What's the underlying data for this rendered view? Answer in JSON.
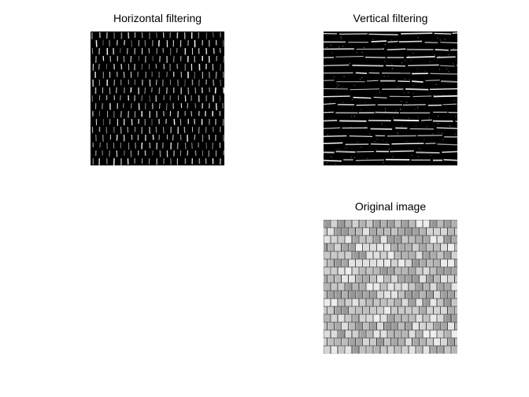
{
  "figure": {
    "background": "#ffffff",
    "panels": [
      {
        "id": "horizontal",
        "title": "Horizontal filtering",
        "content": "texture filtered image with short bright vertical strokes on black",
        "colors": {
          "background": "#000000",
          "stroke": "#ffffff"
        }
      },
      {
        "id": "vertical",
        "title": "Vertical filtering",
        "content": "texture filtered image with bright horizontal lines on black",
        "colors": {
          "background": "#000000",
          "stroke": "#ffffff"
        }
      },
      {
        "id": "original",
        "title": "Original image",
        "content": "grayscale woven / brick-like texture",
        "colors": {
          "background": "#b8b8b8",
          "dark": "#3a3a3a",
          "light": "#e6e6e6"
        }
      }
    ]
  }
}
